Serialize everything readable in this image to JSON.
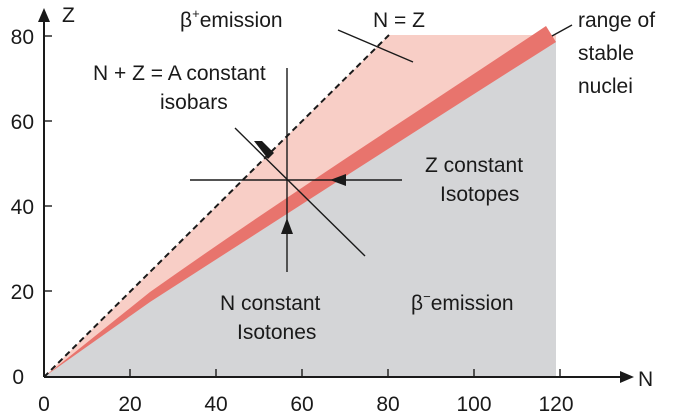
{
  "axes": {
    "x_label": "N",
    "y_label": "Z",
    "x_ticks": [
      "0",
      "20",
      "40",
      "60",
      "80",
      "100",
      "120"
    ],
    "y_ticks": [
      "0",
      "20",
      "40",
      "60",
      "80"
    ]
  },
  "regions": {
    "beta_plus": {
      "label": "β",
      "superscript": "+",
      "rest": "emission",
      "color": "#f8cec6"
    },
    "beta_minus": {
      "label": "β",
      "superscript": "−",
      "rest": "emission",
      "color": "#d4d5d7"
    },
    "stable_band": {
      "line1": "range of",
      "line2": "stable",
      "line3": "nuclei",
      "color": "#e8746d"
    }
  },
  "lines": {
    "n_equals_z": "N = Z",
    "isobars_line1": "N + Z = A constant",
    "isobars_line2": "isobars",
    "isotopes_line1": "Z constant",
    "isotopes_line2": "Isotopes",
    "isotones_line1": "N constant",
    "isotones_line2": "Isotones"
  }
}
